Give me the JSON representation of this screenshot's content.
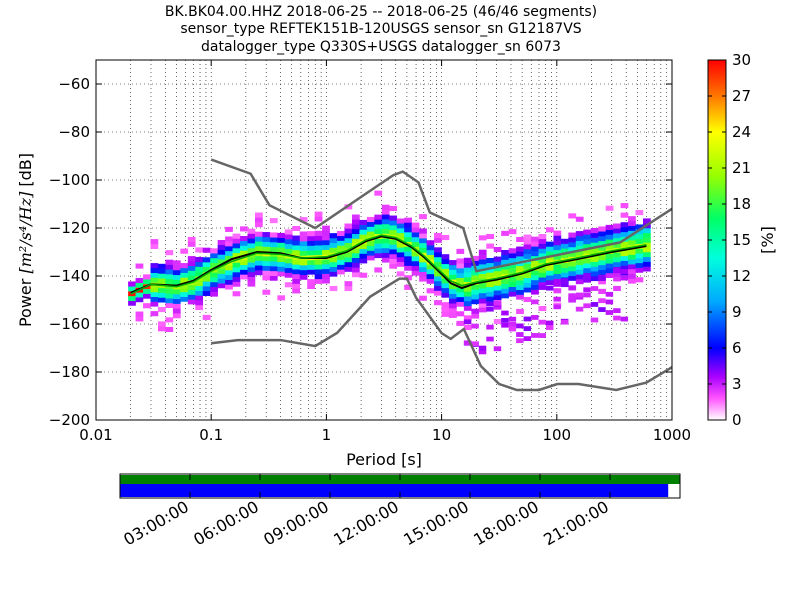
{
  "title_lines": [
    "BK.BK04.00.HHZ   2018-06-25 -- 2018-06-25  (46/46 segments)",
    "sensor_type REFTEK151B-120USGS sensor_sn G12187VS",
    "datalogger_type Q330S+USGS datalogger_sn 6073"
  ],
  "chart_data": {
    "type": "heatmap",
    "xlabel": "Period [s]",
    "xscale": "log",
    "xlim": [
      0.01,
      1000
    ],
    "xticks": [
      0.01,
      0.1,
      1,
      10,
      100,
      1000
    ],
    "xtick_labels": [
      "0.01",
      "0.1",
      "1",
      "10",
      "100",
      "1000"
    ],
    "ylabel_prefix": "Power ",
    "ylabel_unit": "[m²/s⁴/Hz]",
    "ylabel_suffix": " [dB]",
    "ylim": [
      -200,
      -50
    ],
    "yticks": [
      -60,
      -80,
      -100,
      -120,
      -140,
      -160,
      -180,
      -200
    ],
    "ytick_labels": [
      "−60",
      "−80",
      "−100",
      "−120",
      "−140",
      "−160",
      "−180",
      "−200"
    ],
    "colorbar": {
      "label": "[%]",
      "range": [
        0,
        30
      ],
      "ticks": [
        0,
        3,
        6,
        9,
        12,
        15,
        18,
        21,
        24,
        27,
        30
      ]
    },
    "series": [
      {
        "role": "high-noise-model",
        "color": "#666666",
        "points": [
          [
            0.1,
            -91.5
          ],
          [
            0.22,
            -97.4
          ],
          [
            0.32,
            -110.5
          ],
          [
            0.8,
            -120
          ],
          [
            3.8,
            -98
          ],
          [
            4.6,
            -96.5
          ],
          [
            6.3,
            -101
          ],
          [
            7.9,
            -113.5
          ],
          [
            15.4,
            -120
          ],
          [
            20,
            -138
          ],
          [
            354.8,
            -126
          ],
          [
            1000,
            -112
          ]
        ]
      },
      {
        "role": "low-noise-model",
        "color": "#666666",
        "points": [
          [
            0.1,
            -168
          ],
          [
            0.17,
            -166.7
          ],
          [
            0.4,
            -166.7
          ],
          [
            0.8,
            -169.2
          ],
          [
            1.24,
            -163.7
          ],
          [
            2.4,
            -148.6
          ],
          [
            4.3,
            -141.1
          ],
          [
            5,
            -141.1
          ],
          [
            6,
            -149
          ],
          [
            10,
            -163.8
          ],
          [
            12,
            -166.2
          ],
          [
            15.6,
            -162.1
          ],
          [
            21.9,
            -177.5
          ],
          [
            31.6,
            -185
          ],
          [
            45,
            -187.5
          ],
          [
            70,
            -187.5
          ],
          [
            101,
            -185
          ],
          [
            154,
            -185
          ],
          [
            328,
            -187.5
          ],
          [
            600,
            -184.4
          ],
          [
            1000,
            -178
          ]
        ]
      },
      {
        "role": "mean",
        "color": "#000000",
        "points": [
          [
            0.02,
            -147
          ],
          [
            0.03,
            -143.5
          ],
          [
            0.05,
            -144
          ],
          [
            0.07,
            -142
          ],
          [
            0.1,
            -137.5
          ],
          [
            0.15,
            -133
          ],
          [
            0.25,
            -130
          ],
          [
            0.4,
            -130.5
          ],
          [
            0.6,
            -132.5
          ],
          [
            1,
            -132.5
          ],
          [
            1.5,
            -130
          ],
          [
            2.2,
            -125.5
          ],
          [
            3,
            -123.5
          ],
          [
            4,
            -124.5
          ],
          [
            5.5,
            -128
          ],
          [
            7,
            -132
          ],
          [
            9,
            -137
          ],
          [
            12,
            -143
          ],
          [
            15,
            -145
          ],
          [
            20,
            -143
          ],
          [
            30,
            -141.5
          ],
          [
            50,
            -139
          ],
          [
            80,
            -135.5
          ],
          [
            150,
            -133
          ],
          [
            300,
            -130
          ],
          [
            600,
            -127.5
          ]
        ]
      },
      {
        "role": "median",
        "color": "#00aa00",
        "points": [
          [
            0.02,
            -147.5
          ],
          [
            0.03,
            -143.5
          ],
          [
            0.05,
            -144.5
          ],
          [
            0.07,
            -142.5
          ],
          [
            0.1,
            -138
          ],
          [
            0.15,
            -134
          ],
          [
            0.25,
            -130.5
          ],
          [
            0.4,
            -131
          ],
          [
            0.6,
            -132.5
          ],
          [
            1,
            -132
          ],
          [
            1.5,
            -129.5
          ],
          [
            2.2,
            -125
          ],
          [
            3,
            -123
          ],
          [
            4,
            -124
          ],
          [
            5.5,
            -127.5
          ],
          [
            7,
            -131.5
          ],
          [
            9,
            -136.5
          ],
          [
            12,
            -142
          ],
          [
            15,
            -144
          ],
          [
            20,
            -142.5
          ],
          [
            30,
            -141
          ],
          [
            50,
            -138.5
          ],
          [
            80,
            -135
          ],
          [
            150,
            -132.5
          ],
          [
            300,
            -129.5
          ],
          [
            600,
            -127
          ]
        ]
      }
    ]
  },
  "timeline": {
    "tick_labels": [
      "03:00:00",
      "06:00:00",
      "09:00:00",
      "12:00:00",
      "15:00:00",
      "18:00:00",
      "21:00:00"
    ],
    "data_coverage_fraction": 0.979,
    "used_coverage_fraction": 1.0,
    "colors": {
      "data": "#0000ff",
      "used": "#008000"
    }
  }
}
